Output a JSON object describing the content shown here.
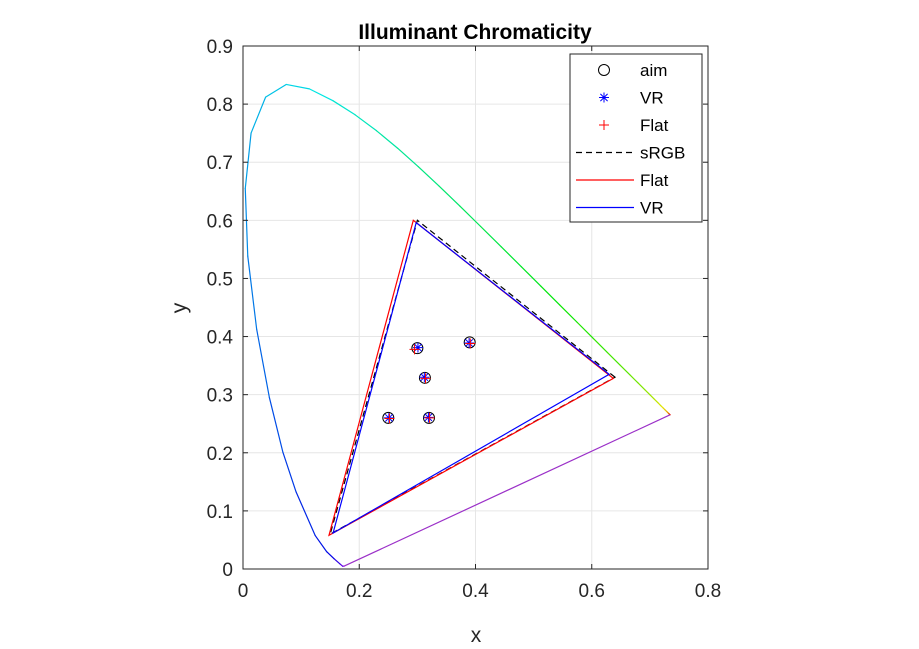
{
  "chart_data": {
    "type": "scatter",
    "title": "Illuminant Chromaticity",
    "xlabel": "x",
    "ylabel": "y",
    "xlim": [
      0,
      0.8
    ],
    "ylim": [
      0,
      0.9
    ],
    "xticks": [
      0,
      0.2,
      0.4,
      0.6,
      0.8
    ],
    "xtick_labels": [
      "0",
      "0.2",
      "0.4",
      "0.6",
      "0.8"
    ],
    "yticks": [
      0,
      0.1,
      0.2,
      0.3,
      0.4,
      0.5,
      0.6,
      0.7,
      0.8,
      0.9
    ],
    "ytick_labels": [
      "0",
      "0.1",
      "0.2",
      "0.3",
      "0.4",
      "0.5",
      "0.6",
      "0.7",
      "0.8",
      "0.9"
    ],
    "grid": true,
    "legend_position": "top-right",
    "spectral_locus": {
      "x": [
        0.1741,
        0.1714,
        0.1666,
        0.1566,
        0.144,
        0.1241,
        0.0913,
        0.0687,
        0.0454,
        0.0235,
        0.0082,
        0.0039,
        0.0139,
        0.0389,
        0.0743,
        0.1142,
        0.1547,
        0.1929,
        0.2296,
        0.2658,
        0.3016,
        0.3373,
        0.3731,
        0.4087,
        0.4441,
        0.4788,
        0.5125,
        0.5448,
        0.5752,
        0.6029,
        0.627,
        0.6482,
        0.6658,
        0.6801,
        0.6915,
        0.7006,
        0.7079,
        0.714,
        0.719,
        0.723,
        0.726,
        0.7283,
        0.73,
        0.7311,
        0.732,
        0.7327,
        0.7334,
        0.734,
        0.7344,
        0.7346,
        0.7347
      ],
      "y": [
        0.005,
        0.0048,
        0.0089,
        0.0177,
        0.0297,
        0.0578,
        0.1327,
        0.2007,
        0.295,
        0.4127,
        0.5384,
        0.6548,
        0.7502,
        0.812,
        0.8338,
        0.8262,
        0.8059,
        0.7816,
        0.7543,
        0.7243,
        0.6923,
        0.6589,
        0.6245,
        0.5896,
        0.5547,
        0.5202,
        0.4866,
        0.4544,
        0.4242,
        0.3965,
        0.3725,
        0.3514,
        0.334,
        0.3197,
        0.3083,
        0.2993,
        0.292,
        0.2859,
        0.2809,
        0.277,
        0.274,
        0.2717,
        0.27,
        0.2689,
        0.268,
        0.2673,
        0.2666,
        0.266,
        0.2656,
        0.2654,
        0.2653
      ],
      "closed": true
    },
    "gamuts": [
      {
        "name": "sRGB",
        "color": "#000000",
        "style": "dashed",
        "points": [
          [
            0.64,
            0.33
          ],
          [
            0.3,
            0.6
          ],
          [
            0.15,
            0.06
          ]
        ]
      },
      {
        "name": "Flat",
        "color": "#ff0000",
        "style": "solid",
        "points": [
          [
            0.637,
            0.328
          ],
          [
            0.293,
            0.6
          ],
          [
            0.148,
            0.058
          ]
        ]
      },
      {
        "name": "VR",
        "color": "#0000ff",
        "style": "solid",
        "points": [
          [
            0.63,
            0.335
          ],
          [
            0.298,
            0.596
          ],
          [
            0.155,
            0.062
          ]
        ]
      }
    ],
    "point_series": [
      {
        "name": "aim",
        "marker": "circle",
        "color": "#000000",
        "points": [
          [
            0.25,
            0.26
          ],
          [
            0.32,
            0.26
          ],
          [
            0.313,
            0.329
          ],
          [
            0.3,
            0.38
          ],
          [
            0.39,
            0.39
          ]
        ]
      },
      {
        "name": "VR",
        "marker": "asterisk",
        "color": "#0000ff",
        "points": [
          [
            0.251,
            0.26
          ],
          [
            0.319,
            0.261
          ],
          [
            0.312,
            0.33
          ],
          [
            0.301,
            0.381
          ],
          [
            0.389,
            0.389
          ]
        ]
      },
      {
        "name": "Flat",
        "marker": "plus",
        "color": "#ff0000",
        "points": [
          [
            0.252,
            0.259
          ],
          [
            0.321,
            0.26
          ],
          [
            0.314,
            0.328
          ],
          [
            0.295,
            0.378
          ],
          [
            0.391,
            0.388
          ]
        ]
      }
    ],
    "legend": [
      {
        "label": "aim",
        "kind": "marker",
        "marker": "circle",
        "color": "#000000"
      },
      {
        "label": "VR",
        "kind": "marker",
        "marker": "asterisk",
        "color": "#0000ff"
      },
      {
        "label": "Flat",
        "kind": "marker",
        "marker": "plus",
        "color": "#ff0000"
      },
      {
        "label": "sRGB",
        "kind": "line",
        "style": "dashed",
        "color": "#000000"
      },
      {
        "label": "Flat",
        "kind": "line",
        "style": "solid",
        "color": "#ff0000"
      },
      {
        "label": "VR",
        "kind": "line",
        "style": "solid",
        "color": "#0000ff"
      }
    ]
  }
}
